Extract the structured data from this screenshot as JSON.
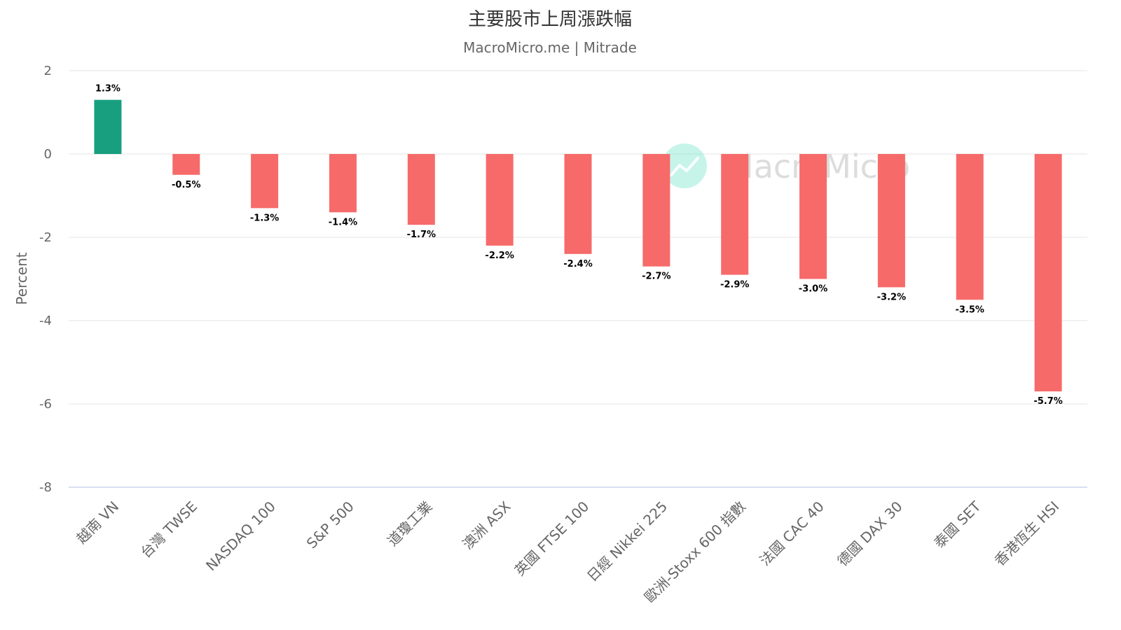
{
  "chart_data": {
    "type": "bar",
    "title": "主要股市上周漲跌幅",
    "subtitle": "MacroMicro.me | Mitrade",
    "ylabel": "Percent",
    "xlabel": "",
    "ylim": [
      -8,
      2
    ],
    "yticks": [
      2,
      0,
      -2,
      -4,
      -6,
      -8
    ],
    "grid": true,
    "legend": "none",
    "categories": [
      "越南 VN",
      "台灣 TWSE",
      "NASDAQ 100",
      "S&P 500",
      "道瓊工業",
      "澳洲 ASX",
      "英國 FTSE 100",
      "日經 Nikkei 225",
      "歐洲-Stoxx 600 指數",
      "法國 CAC 40",
      "德國 DAX 30",
      "泰國 SET",
      "香港恆生 HSI"
    ],
    "values": [
      1.3,
      -0.5,
      -1.3,
      -1.4,
      -1.7,
      -2.2,
      -2.4,
      -2.7,
      -2.9,
      -3.0,
      -3.2,
      -3.5,
      -5.7
    ],
    "data_labels": [
      "1.3%",
      "-0.5%",
      "-1.3%",
      "-1.4%",
      "-1.7%",
      "-2.2%",
      "-2.4%",
      "-2.7%",
      "-2.9%",
      "-3.0%",
      "-3.2%",
      "-3.5%",
      "-5.7%"
    ],
    "colors": {
      "positive": "#179f80",
      "negative": "#f76a6a",
      "grid": "#e6e6e6",
      "axis": "#ccd6eb"
    }
  },
  "watermark": {
    "text": "MacroMicro",
    "icon": "chart-trend-icon",
    "color": "#5ee0c0"
  }
}
